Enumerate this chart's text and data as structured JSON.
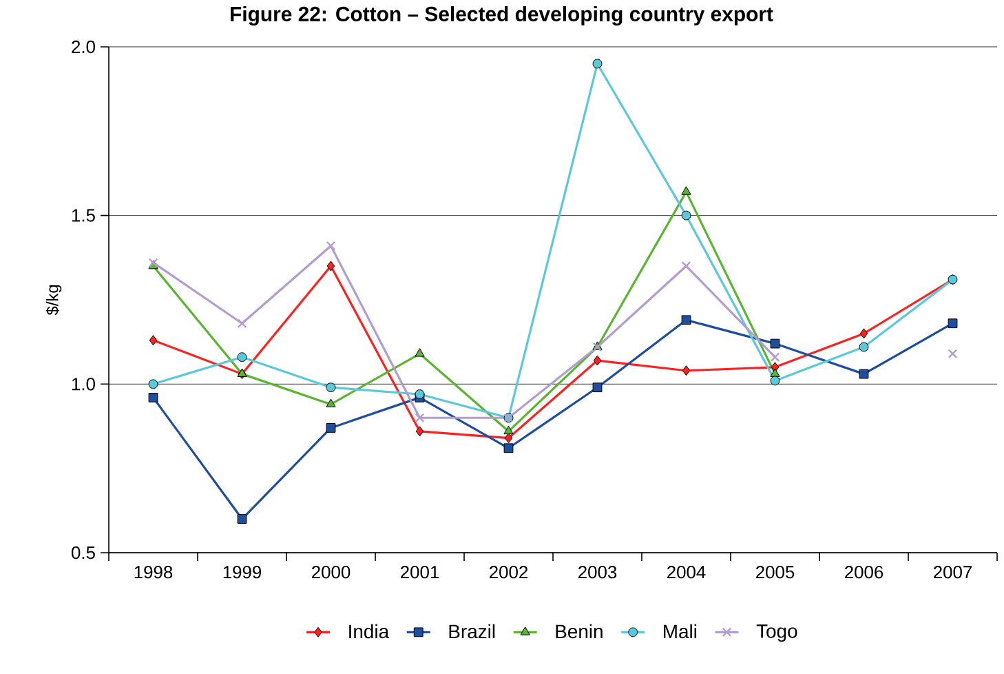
{
  "chart_data": {
    "type": "line",
    "title": "Figure 22: Cotton – Selected developing country export",
    "ylabel": "$/kg",
    "categories": [
      "1998",
      "1999",
      "2000",
      "2001",
      "2002",
      "2003",
      "2004",
      "2005",
      "2006",
      "2007"
    ],
    "series": [
      {
        "name": "India",
        "color": "#ff2020",
        "marker": "diamond",
        "values": [
          1.13,
          1.03,
          1.35,
          0.86,
          0.84,
          1.07,
          1.04,
          1.05,
          1.15,
          1.31
        ]
      },
      {
        "name": "Brazil",
        "color": "#1f4e9e",
        "marker": "square",
        "values": [
          0.96,
          0.6,
          0.87,
          0.96,
          0.81,
          0.99,
          1.19,
          1.12,
          1.03,
          1.18
        ]
      },
      {
        "name": "Benin",
        "color": "#5ab531",
        "marker": "triangle",
        "values": [
          1.35,
          1.03,
          0.94,
          1.09,
          0.86,
          1.11,
          1.57,
          1.03,
          null,
          null
        ]
      },
      {
        "name": "Mali",
        "color": "#5bc8dc",
        "marker": "circle",
        "values": [
          1.0,
          1.08,
          0.99,
          0.97,
          0.9,
          1.95,
          1.5,
          1.01,
          1.11,
          1.31
        ]
      },
      {
        "name": "Togo",
        "color": "#b39cd0",
        "marker": "cross",
        "values": [
          1.36,
          1.18,
          1.41,
          0.9,
          0.9,
          1.11,
          1.35,
          1.08,
          null,
          1.09
        ]
      }
    ],
    "ylim": [
      0.5,
      2.0
    ],
    "yticks": [
      {
        "value": 0.5,
        "label": "0.5"
      },
      {
        "value": 1.0,
        "label": "1.0"
      },
      {
        "value": 1.5,
        "label": "1.5"
      },
      {
        "value": 2.0,
        "label": "2.0"
      }
    ],
    "grid": "y",
    "legend": "bottom"
  }
}
